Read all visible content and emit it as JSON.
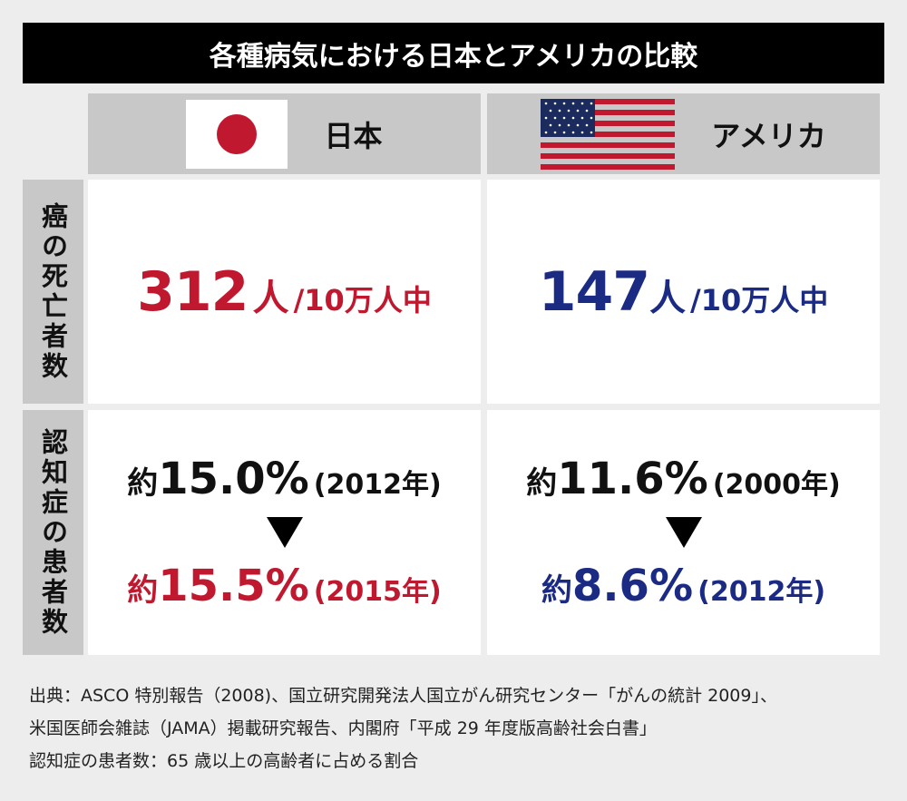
{
  "title": "各種病気における日本とアメリカの比較",
  "columns": [
    {
      "label": "日本",
      "flag": "japan-flag"
    },
    {
      "label": "アメリカ",
      "flag": "usa-flag"
    }
  ],
  "rows": [
    {
      "label": "癌の死亡者数",
      "japan": {
        "value": "312",
        "unit": "人",
        "per": "/10万人中"
      },
      "usa": {
        "value": "147",
        "unit": "人",
        "per": "/10万人中"
      }
    },
    {
      "label": "認知症の患者数",
      "japan": {
        "before_prefix": "約",
        "before": "15.0%",
        "before_year": "(2012年)",
        "after_prefix": "約",
        "after": "15.5%",
        "after_year": "(2015年)"
      },
      "usa": {
        "before_prefix": "約",
        "before": "11.6%",
        "before_year": "(2000年)",
        "after_prefix": "約",
        "after": "8.6%",
        "after_year": "(2012年)"
      }
    }
  ],
  "colors": {
    "japan": "#c0182f",
    "usa": "#1b2b84",
    "header": "#c8c8c8",
    "title_bg": "#000000"
  },
  "footnotes": [
    "出典：ASCO 特別報告（2008)、国立研究開発法人国立がん研究センター「がんの統計 2009」、",
    "米国医師会雑誌（JAMA）掲載研究報告、内閣府「平成 29 年度版高齢社会白書」",
    "認知症の患者数：65 歳以上の高齢者に占める割合"
  ]
}
